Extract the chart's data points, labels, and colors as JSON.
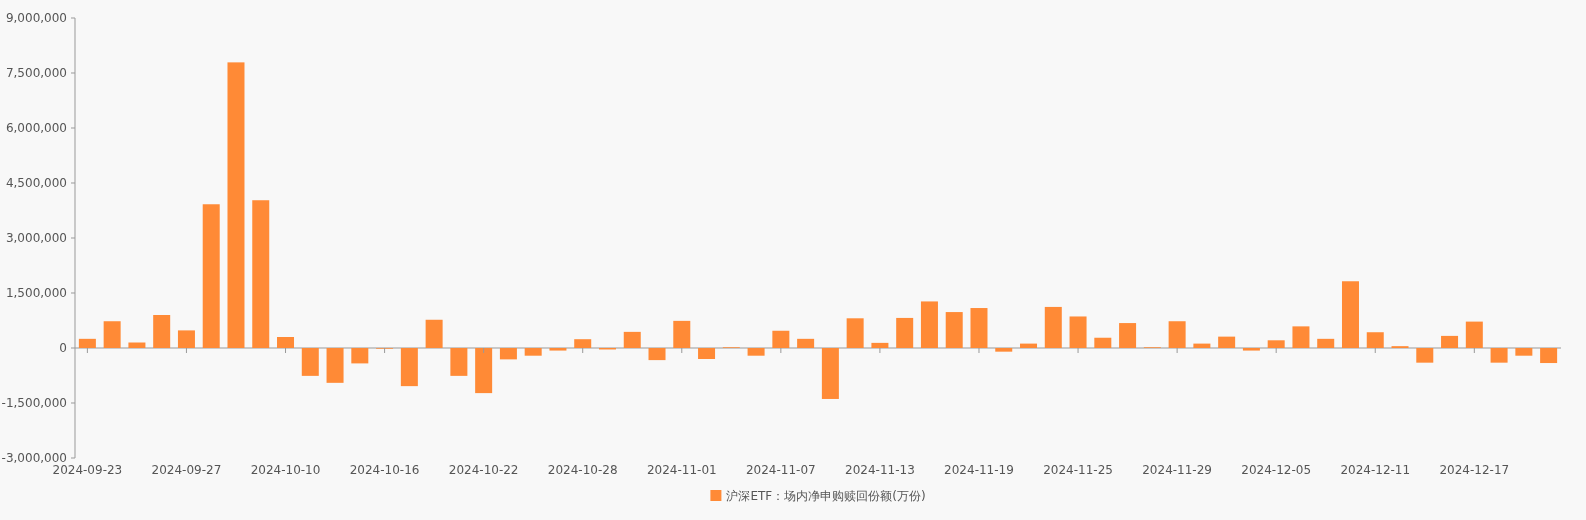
{
  "chart_data": {
    "type": "bar",
    "categories": [
      "2024-09-23",
      null,
      null,
      null,
      "2024-09-27",
      null,
      null,
      null,
      "2024-10-10",
      null,
      null,
      null,
      "2024-10-16",
      null,
      null,
      null,
      "2024-10-22",
      null,
      null,
      null,
      "2024-10-28",
      null,
      null,
      null,
      "2024-11-01",
      null,
      null,
      null,
      "2024-11-07",
      null,
      null,
      null,
      "2024-11-13",
      null,
      null,
      null,
      "2024-11-19",
      null,
      null,
      null,
      "2024-11-25",
      null,
      null,
      null,
      "2024-11-29",
      null,
      null,
      null,
      "2024-12-05",
      null,
      null,
      null,
      "2024-12-11",
      null,
      null,
      null,
      "2024-12-17",
      null,
      null,
      null
    ],
    "series": [
      {
        "name": "沪深ETF：场内净申购赎回份额(万份)",
        "color": "#ff8a36",
        "values": [
          250000,
          730000,
          150000,
          900000,
          480000,
          3920000,
          7790000,
          4030000,
          300000,
          -760000,
          -950000,
          -420000,
          -20000,
          -1040000,
          770000,
          -760000,
          -1230000,
          -310000,
          -210000,
          -70000,
          240000,
          -40000,
          440000,
          -330000,
          740000,
          -300000,
          20000,
          -210000,
          470000,
          250000,
          -1390000,
          810000,
          140000,
          820000,
          1270000,
          980000,
          1090000,
          -100000,
          120000,
          1120000,
          860000,
          280000,
          680000,
          20000,
          730000,
          120000,
          310000,
          -70000,
          210000,
          590000,
          250000,
          1820000,
          430000,
          50000,
          -400000,
          330000,
          720000,
          -400000,
          -210000,
          -410000
        ]
      }
    ],
    "ylim": [
      -3000000,
      9000000
    ],
    "yticks": [
      {
        "value": -3000000,
        "label": "-3,000,000"
      },
      {
        "value": -1500000,
        "label": "-1,500,000"
      },
      {
        "value": 0,
        "label": "0"
      },
      {
        "value": 1500000,
        "label": "1,500,000"
      },
      {
        "value": 3000000,
        "label": "3,000,000"
      },
      {
        "value": 4500000,
        "label": "4,500,000"
      },
      {
        "value": 6000000,
        "label": "6,000,000"
      },
      {
        "value": 7500000,
        "label": "7,500,000"
      },
      {
        "value": 9000000,
        "label": "9,000,000"
      }
    ],
    "legend": "bottom"
  }
}
